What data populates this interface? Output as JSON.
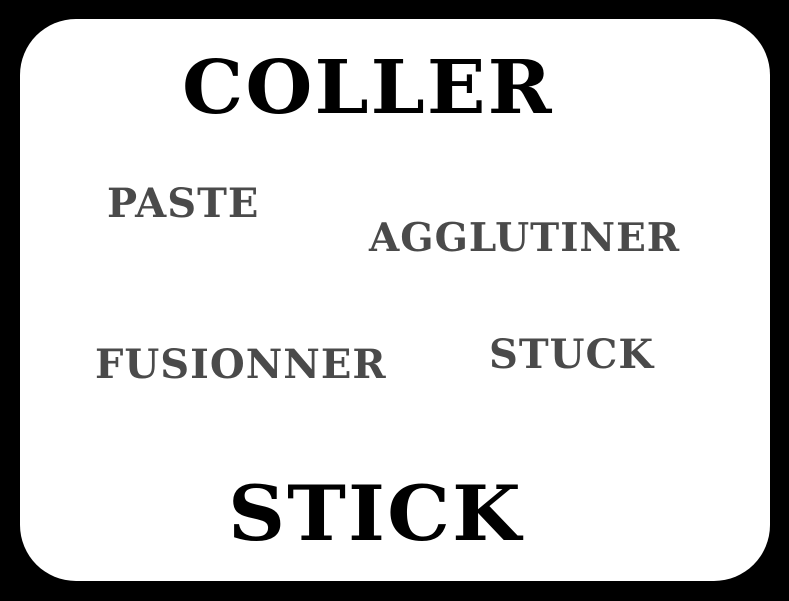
{
  "card": {
    "title_top": "COLLER",
    "title_bottom": "STICK",
    "words": {
      "paste": "PASTE",
      "agglutiner": "AGGLUTINER",
      "fusionner": "FUSIONNER",
      "stuck": "STUCK"
    }
  },
  "colors": {
    "background": "#000000",
    "card": "#ffffff",
    "main_text": "#000000",
    "secondary_text": "#4a4a4a"
  }
}
